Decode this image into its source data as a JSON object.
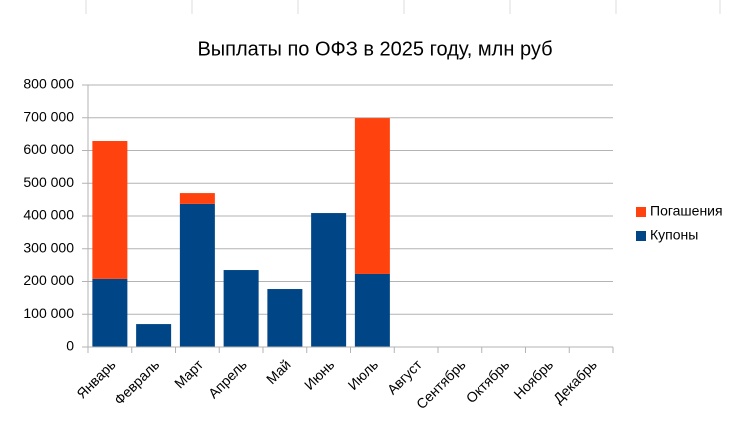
{
  "chart_data": {
    "type": "stacked-bar",
    "title": "Выплаты по ОФЗ в 2025 году, млн руб",
    "categories": [
      "Январь",
      "Февраль",
      "Март",
      "Апрель",
      "Май",
      "Июнь",
      "Июль",
      "Август",
      "Сентябрь",
      "Октябрь",
      "Ноябрь",
      "Декабрь"
    ],
    "series": [
      {
        "name": "Купоны",
        "color": "#004586",
        "values": [
          208000,
          70000,
          437000,
          235000,
          177000,
          409000,
          223000,
          0,
          0,
          0,
          0,
          0
        ]
      },
      {
        "name": "Погашения",
        "color": "#ff420e",
        "values": [
          421000,
          0,
          33000,
          0,
          0,
          0,
          476000,
          0,
          0,
          0,
          0,
          0
        ]
      }
    ],
    "ylim": [
      0,
      800000
    ],
    "yticks": [
      {
        "value": 0,
        "label": "0"
      },
      {
        "value": 100000,
        "label": "100 000"
      },
      {
        "value": 200000,
        "label": "200 000"
      },
      {
        "value": 300000,
        "label": "300 000"
      },
      {
        "value": 400000,
        "label": "400 000"
      },
      {
        "value": 500000,
        "label": "500 000"
      },
      {
        "value": 600000,
        "label": "600 000"
      },
      {
        "value": 700000,
        "label": "700 000"
      },
      {
        "value": 800000,
        "label": "800 000"
      }
    ],
    "grid": true,
    "legend": "right"
  }
}
